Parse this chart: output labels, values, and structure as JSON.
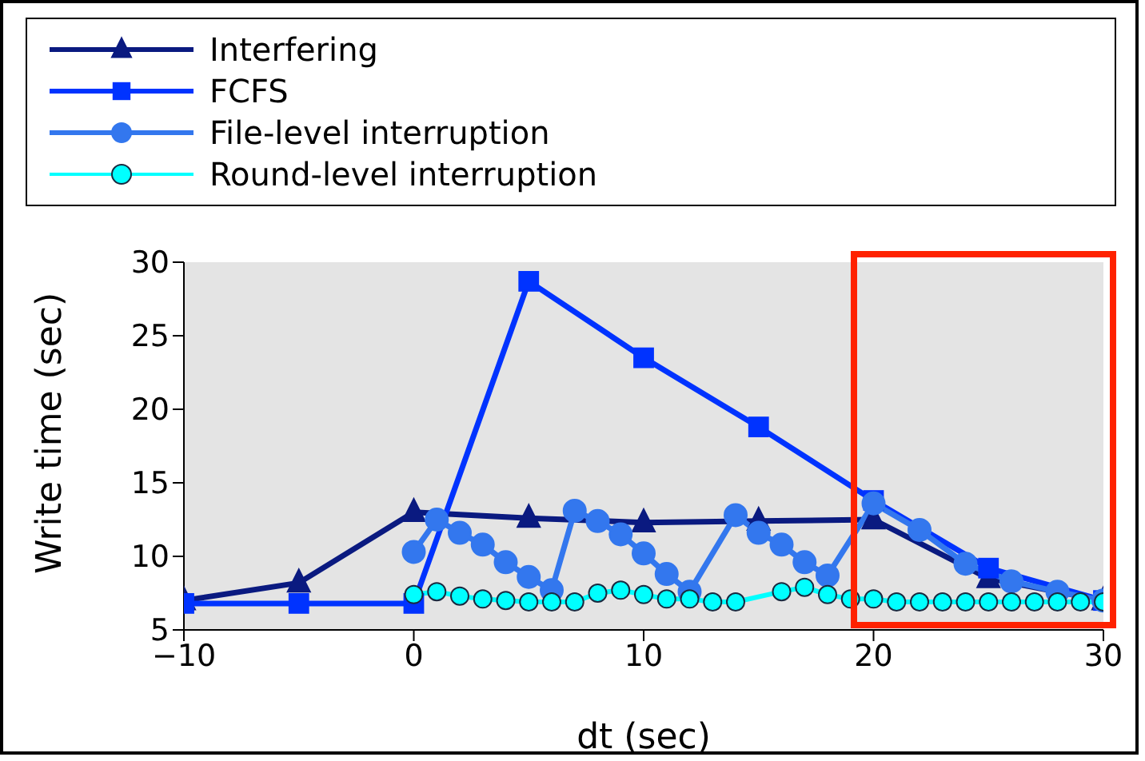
{
  "chart_data": {
    "type": "line",
    "xlabel": "dt (sec)",
    "ylabel": "Write time (sec)",
    "xlim": [
      -10,
      30
    ],
    "xticks": [
      -10,
      0,
      10,
      20,
      30
    ],
    "ylim": [
      5,
      30
    ],
    "yticks": [
      5,
      10,
      15,
      20,
      25,
      30
    ],
    "grid": false,
    "legend": "top",
    "series": [
      {
        "name": "Interfering",
        "color": "#0a1a80",
        "marker": "triangle",
        "x": [
          -10,
          -5,
          0,
          5,
          10,
          15,
          20,
          25,
          30
        ],
        "values": [
          7,
          8.2,
          13,
          12.6,
          12.3,
          12.4,
          12.5,
          8.5,
          7
        ]
      },
      {
        "name": "FCFS",
        "color": "#0033ff",
        "marker": "square",
        "x": [
          -10,
          -5,
          0,
          5,
          10,
          15,
          20,
          25,
          30
        ],
        "values": [
          6.8,
          6.8,
          6.8,
          28.7,
          23.5,
          18.8,
          13.8,
          9.2,
          7
        ]
      },
      {
        "name": "File-level interruption",
        "color": "#3377ee",
        "marker": "circle",
        "x": [
          0,
          1,
          2,
          3,
          4,
          5,
          6,
          7,
          8,
          9,
          10,
          11,
          12,
          14,
          15,
          16,
          17,
          18,
          20,
          22,
          24,
          26,
          28,
          30
        ],
        "values": [
          10.3,
          12.5,
          11.6,
          10.8,
          9.6,
          8.6,
          7.7,
          13.1,
          12.4,
          11.5,
          10.2,
          8.8,
          7.6,
          12.8,
          11.6,
          10.8,
          9.6,
          8.7,
          13.6,
          11.8,
          9.5,
          8.3,
          7.6,
          7
        ]
      },
      {
        "name": "Round-level interruption",
        "color": "#00ffff",
        "marker": "circle",
        "x": [
          0,
          1,
          2,
          3,
          4,
          5,
          6,
          7,
          8,
          9,
          10,
          11,
          12,
          13,
          14,
          16,
          17,
          18,
          19,
          20,
          21,
          22,
          23,
          24,
          25,
          26,
          27,
          28,
          29,
          30
        ],
        "values": [
          7.4,
          7.6,
          7.3,
          7.1,
          7.0,
          6.9,
          6.9,
          6.9,
          7.5,
          7.7,
          7.4,
          7.1,
          7.1,
          6.9,
          6.9,
          7.6,
          7.9,
          7.4,
          7.1,
          7.1,
          6.9,
          6.9,
          6.9,
          6.9,
          6.9,
          6.9,
          6.9,
          6.9,
          6.9,
          6.9
        ]
      }
    ]
  }
}
